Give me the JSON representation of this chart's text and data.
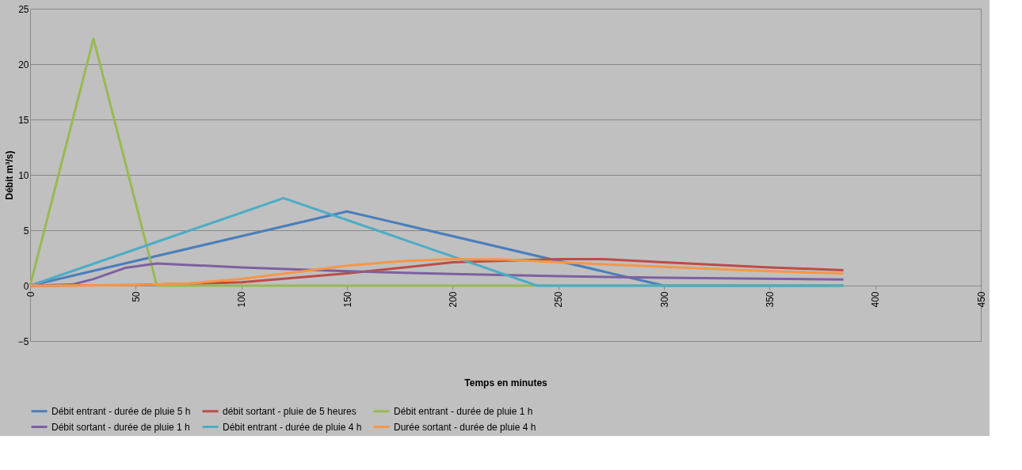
{
  "chart_data": {
    "type": "line",
    "xlabel": "Temps en minutes",
    "ylabel": "Débit m³/s)",
    "xlim": [
      0,
      450
    ],
    "xticks": [
      0,
      50,
      100,
      150,
      200,
      250,
      300,
      350,
      400,
      450
    ],
    "ylim": [
      -5,
      25
    ],
    "yticks": [
      -5,
      0,
      5,
      10,
      15,
      20,
      25
    ],
    "grid": "y",
    "legend": "bottom",
    "marker": "none",
    "line_style": "solid",
    "series": [
      {
        "name": "Débit entrant - durée de pluie 5 h",
        "color": "#4a7ebb",
        "x": [
          0,
          150,
          300,
          385
        ],
        "values": [
          0,
          6.7,
          0,
          0
        ]
      },
      {
        "name": "débit sortant - pluie de 5 heures",
        "color": "#be4b48",
        "x": [
          0,
          50,
          100,
          150,
          200,
          250,
          270,
          300,
          350,
          385
        ],
        "values": [
          0,
          0.05,
          0.3,
          1.1,
          2.1,
          2.4,
          2.4,
          2.1,
          1.65,
          1.4
        ]
      },
      {
        "name": "Débit entrant - durée de pluie 1 h",
        "color": "#98b954",
        "x": [
          0,
          30,
          60,
          385
        ],
        "values": [
          0,
          22.3,
          0,
          0
        ]
      },
      {
        "name": "Débit sortant - durée de pluie 1 h",
        "color": "#7d60a0",
        "x": [
          0,
          20,
          30,
          45,
          60,
          100,
          150,
          200,
          250,
          300,
          385
        ],
        "values": [
          0,
          0.1,
          0.6,
          1.6,
          2.0,
          1.65,
          1.3,
          1.05,
          0.85,
          0.72,
          0.55
        ]
      },
      {
        "name": "Débit entrant - durée de pluie 4 h",
        "color": "#4bacc6",
        "x": [
          0,
          120,
          240,
          385
        ],
        "values": [
          0,
          7.9,
          0,
          0
        ]
      },
      {
        "name": "Durée sortant - durée de pluie 4 h",
        "color": "#f79646",
        "x": [
          0,
          50,
          75,
          100,
          125,
          150,
          175,
          200,
          225,
          250,
          300,
          350,
          385
        ],
        "values": [
          0,
          0.05,
          0.2,
          0.6,
          1.2,
          1.8,
          2.2,
          2.4,
          2.35,
          2.1,
          1.7,
          1.3,
          1.1
        ]
      }
    ]
  }
}
